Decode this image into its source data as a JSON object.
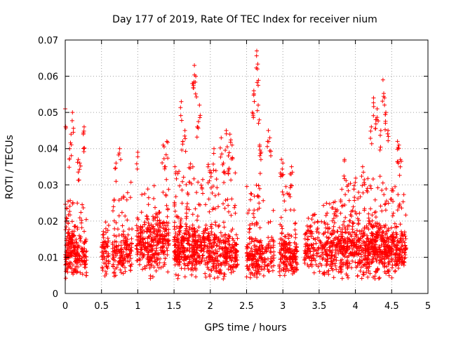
{
  "chart_data": {
    "type": "scatter",
    "title": "Day 177 of 2019, Rate Of TEC Index for receiver nium",
    "xlabel": "GPS time / hours",
    "ylabel": "ROTI / TECUs",
    "xlim": [
      0,
      5
    ],
    "ylim": [
      0,
      0.07
    ],
    "xticks": [
      "0",
      "0.5",
      "1",
      "1.5",
      "2",
      "2.5",
      "3",
      "3.5",
      "4",
      "4.5",
      "5"
    ],
    "yticks": [
      "0",
      "0.01",
      "0.02",
      "0.03",
      "0.04",
      "0.05",
      "0.06",
      "0.07"
    ],
    "grid": true,
    "marker": "+",
    "marker_color": "#ff0000",
    "series": [
      {
        "name": "ROTI",
        "clusters": [
          {
            "start": 0.0,
            "end": 0.14,
            "base": 0.011,
            "spread": 0.005,
            "count": 150,
            "high": 0.026,
            "peaks": [
              [
                0.0,
                0.051
              ],
              [
                0.08,
                0.044
              ],
              [
                0.1,
                0.05
              ],
              [
                0.06,
                0.04
              ]
            ]
          },
          {
            "start": 0.14,
            "end": 0.3,
            "base": 0.01,
            "spread": 0.004,
            "count": 100,
            "high": 0.025,
            "peaks": [
              [
                0.18,
                0.037
              ],
              [
                0.2,
                0.036
              ],
              [
                0.26,
                0.046
              ],
              [
                0.25,
                0.044
              ]
            ]
          },
          {
            "start": 0.5,
            "end": 0.6,
            "base": 0.01,
            "spread": 0.004,
            "count": 60,
            "high": 0.022,
            "peaks": []
          },
          {
            "start": 0.65,
            "end": 0.8,
            "base": 0.011,
            "spread": 0.004,
            "count": 90,
            "high": 0.027,
            "peaks": [
              [
                0.75,
                0.04
              ],
              [
                0.7,
                0.036
              ]
            ]
          },
          {
            "start": 0.8,
            "end": 0.92,
            "base": 0.012,
            "spread": 0.004,
            "count": 70,
            "high": 0.032,
            "peaks": []
          },
          {
            "start": 0.98,
            "end": 1.2,
            "base": 0.013,
            "spread": 0.005,
            "count": 160,
            "high": 0.029,
            "peaks": [
              [
                1.0,
                0.039
              ]
            ]
          },
          {
            "start": 1.2,
            "end": 1.43,
            "base": 0.014,
            "spread": 0.005,
            "count": 170,
            "high": 0.03,
            "peaks": [
              [
                1.35,
                0.041
              ],
              [
                1.4,
                0.042
              ],
              [
                1.38,
                0.035
              ]
            ]
          },
          {
            "start": 1.5,
            "end": 1.7,
            "base": 0.013,
            "spread": 0.005,
            "count": 190,
            "high": 0.036,
            "peaks": [
              [
                1.6,
                0.053
              ],
              [
                1.65,
                0.045
              ],
              [
                1.62,
                0.042
              ]
            ]
          },
          {
            "start": 1.7,
            "end": 1.98,
            "base": 0.012,
            "spread": 0.005,
            "count": 210,
            "high": 0.036,
            "peaks": [
              [
                1.78,
                0.063
              ],
              [
                1.8,
                0.06
              ],
              [
                1.76,
                0.058
              ],
              [
                1.85,
                0.052
              ],
              [
                1.82,
                0.046
              ]
            ]
          },
          {
            "start": 1.98,
            "end": 2.2,
            "base": 0.011,
            "spread": 0.005,
            "count": 160,
            "high": 0.034,
            "peaks": [
              [
                2.05,
                0.04
              ],
              [
                2.15,
                0.043
              ],
              [
                2.18,
                0.036
              ]
            ]
          },
          {
            "start": 2.2,
            "end": 2.38,
            "base": 0.011,
            "spread": 0.004,
            "count": 130,
            "high": 0.034,
            "peaks": [
              [
                2.22,
                0.045
              ],
              [
                2.27,
                0.044
              ],
              [
                2.3,
                0.041
              ],
              [
                2.25,
                0.038
              ]
            ]
          },
          {
            "start": 2.5,
            "end": 2.62,
            "base": 0.01,
            "spread": 0.004,
            "count": 90,
            "high": 0.03,
            "peaks": [
              [
                2.6,
                0.056
              ],
              [
                2.58,
                0.05
              ]
            ]
          },
          {
            "start": 2.62,
            "end": 2.75,
            "base": 0.01,
            "spread": 0.004,
            "count": 90,
            "high": 0.033,
            "peaks": [
              [
                2.64,
                0.067
              ],
              [
                2.65,
                0.062
              ],
              [
                2.66,
                0.052
              ],
              [
                2.68,
                0.041
              ],
              [
                2.7,
                0.039
              ]
            ]
          },
          {
            "start": 2.75,
            "end": 2.88,
            "base": 0.01,
            "spread": 0.003,
            "count": 50,
            "high": 0.024,
            "peaks": [
              [
                2.8,
                0.045
              ],
              [
                2.82,
                0.043
              ]
            ]
          },
          {
            "start": 2.95,
            "end": 3.1,
            "base": 0.011,
            "spread": 0.004,
            "count": 110,
            "high": 0.03,
            "peaks": [
              [
                2.98,
                0.037
              ],
              [
                3.0,
                0.036
              ]
            ]
          },
          {
            "start": 3.1,
            "end": 3.2,
            "base": 0.01,
            "spread": 0.004,
            "count": 70,
            "high": 0.024,
            "peaks": [
              [
                3.12,
                0.035
              ],
              [
                3.1,
                0.033
              ]
            ]
          },
          {
            "start": 3.3,
            "end": 3.55,
            "base": 0.012,
            "spread": 0.004,
            "count": 120,
            "high": 0.023,
            "peaks": []
          },
          {
            "start": 3.55,
            "end": 3.8,
            "base": 0.012,
            "spread": 0.005,
            "count": 170,
            "high": 0.026,
            "peaks": []
          },
          {
            "start": 3.8,
            "end": 4.0,
            "base": 0.012,
            "spread": 0.005,
            "count": 160,
            "high": 0.033,
            "peaks": [
              [
                3.85,
                0.037
              ],
              [
                3.9,
                0.03
              ]
            ]
          },
          {
            "start": 4.0,
            "end": 4.2,
            "base": 0.012,
            "spread": 0.005,
            "count": 170,
            "high": 0.032,
            "peaks": [
              [
                4.1,
                0.035
              ]
            ]
          },
          {
            "start": 4.2,
            "end": 4.4,
            "base": 0.013,
            "spread": 0.005,
            "count": 180,
            "high": 0.034,
            "peaks": [
              [
                4.25,
                0.054
              ],
              [
                4.3,
                0.051
              ],
              [
                4.22,
                0.046
              ],
              [
                4.35,
                0.045
              ],
              [
                4.28,
                0.048
              ]
            ]
          },
          {
            "start": 4.4,
            "end": 4.55,
            "base": 0.012,
            "spread": 0.005,
            "count": 130,
            "high": 0.03,
            "peaks": [
              [
                4.38,
                0.059
              ],
              [
                4.4,
                0.054
              ],
              [
                4.42,
                0.05
              ],
              [
                4.45,
                0.045
              ]
            ]
          },
          {
            "start": 4.55,
            "end": 4.7,
            "base": 0.012,
            "spread": 0.004,
            "count": 110,
            "high": 0.028,
            "peaks": [
              [
                4.58,
                0.042
              ],
              [
                4.6,
                0.041
              ],
              [
                4.62,
                0.037
              ]
            ]
          }
        ]
      }
    ]
  }
}
